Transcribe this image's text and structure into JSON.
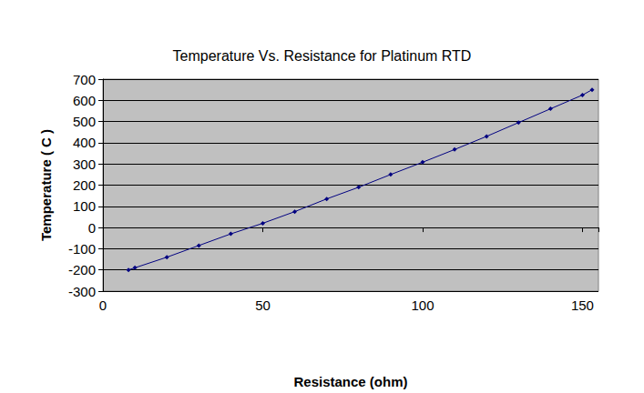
{
  "chart_data": {
    "type": "line",
    "title": "Temperature Vs. Resistance for Platinum RTD",
    "x_label": "Resistance (ohm)",
    "y_label": "Temperature ( C )",
    "x": [
      8,
      10,
      20,
      30,
      40,
      50,
      60,
      70,
      80,
      90,
      100,
      110,
      120,
      130,
      140,
      150,
      153
    ],
    "values": [
      -200,
      -190,
      -140,
      -85,
      -30,
      20,
      75,
      135,
      190,
      250,
      308,
      368,
      430,
      495,
      560,
      625,
      650
    ],
    "color": "#000080",
    "marker": "diamond",
    "xlim": [
      0,
      155
    ],
    "xticks": [
      0,
      50,
      100,
      150
    ],
    "ylim": [
      -300,
      700
    ],
    "yticks": [
      -300,
      -200,
      -100,
      0,
      100,
      200,
      300,
      400,
      500,
      600,
      700
    ],
    "grid": "y"
  }
}
